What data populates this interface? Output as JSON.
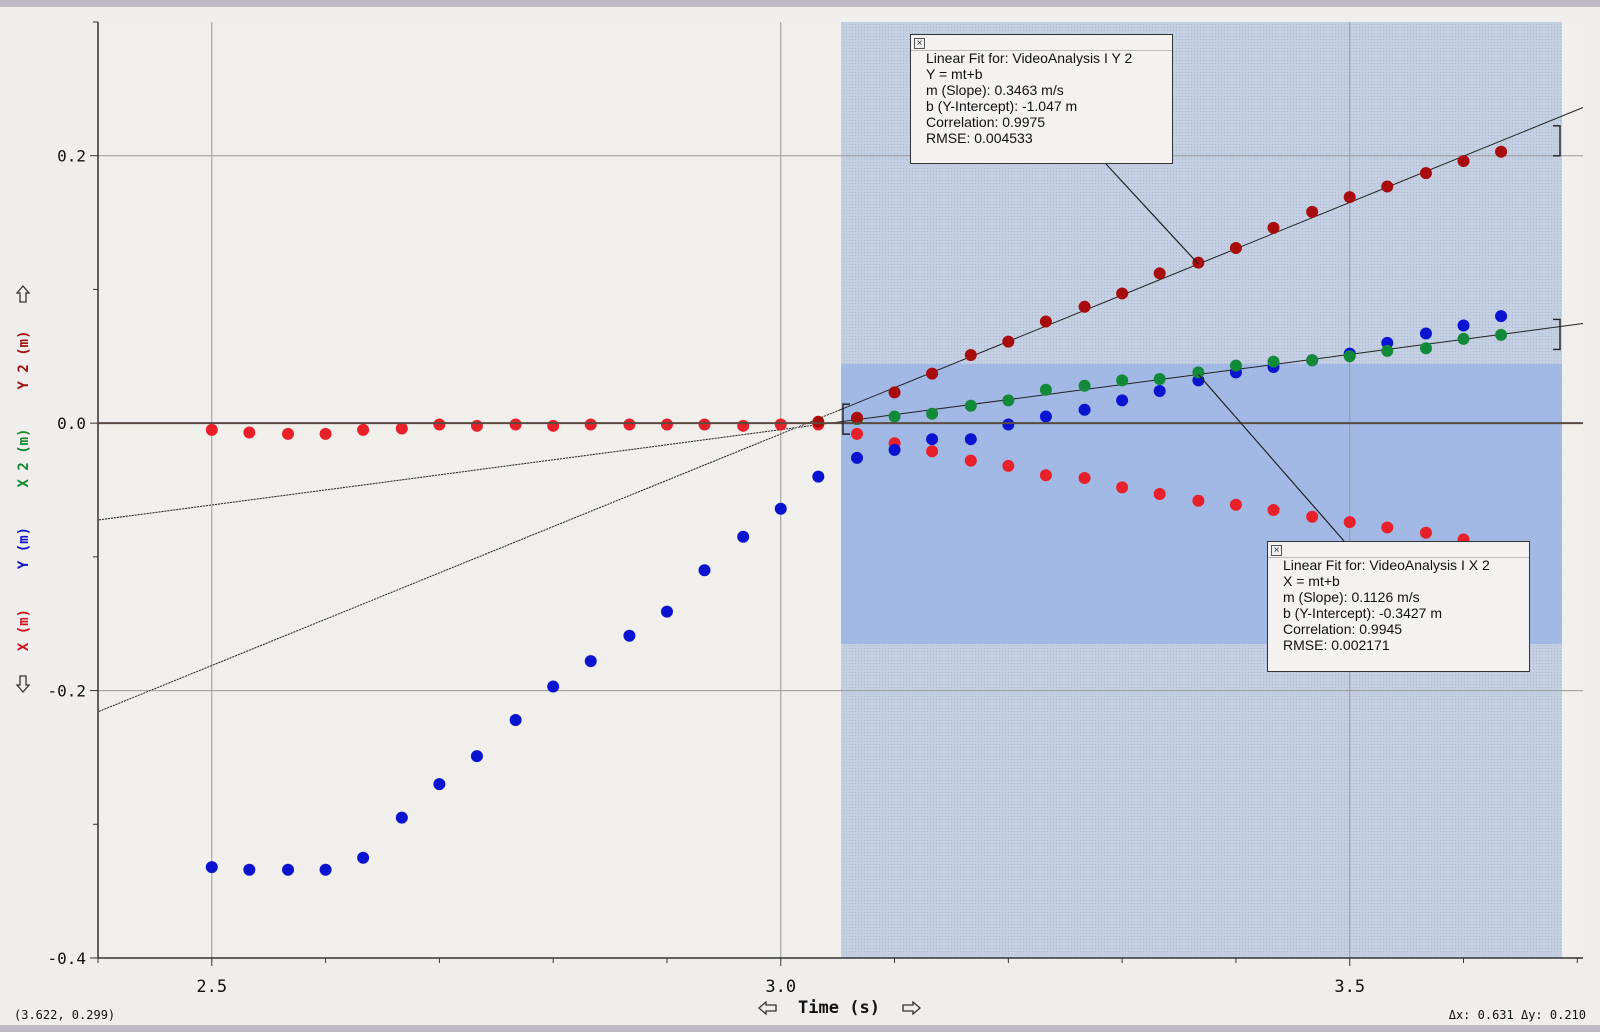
{
  "chart_data": {
    "type": "scatter",
    "xlabel": "Time (s)",
    "ylabels": [
      {
        "text": "X (m)",
        "color": "#d01020"
      },
      {
        "text": "Y (m)",
        "color": "#1010c8"
      },
      {
        "text": "X 2 (m)",
        "color": "#108830"
      },
      {
        "text": "Y 2 (m)",
        "color": "#a01010"
      }
    ],
    "xlim": [
      2.4,
      3.705
    ],
    "ylim": [
      -0.4,
      0.3
    ],
    "x_ticks": [
      2.5,
      3.0,
      3.5
    ],
    "x_tick_labels": [
      "2.5",
      "3.0",
      "3.5"
    ],
    "y_ticks": [
      -0.4,
      -0.2,
      0.0,
      0.2
    ],
    "y_tick_labels": [
      "-0.4",
      "-0.2",
      "0.0",
      "0.2"
    ],
    "grid": true,
    "series": [
      {
        "name": "X",
        "color": "#e8202a",
        "x": [
          2.5,
          2.533,
          2.567,
          2.6,
          2.633,
          2.667,
          2.7,
          2.733,
          2.767,
          2.8,
          2.833,
          2.867,
          2.9,
          2.933,
          2.967,
          3.0,
          3.033,
          3.067,
          3.1,
          3.133,
          3.167,
          3.2,
          3.233,
          3.267,
          3.3,
          3.333,
          3.367,
          3.4,
          3.433,
          3.467,
          3.5,
          3.533,
          3.567,
          3.6
        ],
        "y": [
          -0.005,
          -0.007,
          -0.008,
          -0.008,
          -0.005,
          -0.004,
          -0.001,
          -0.002,
          -0.001,
          -0.002,
          -0.001,
          -0.001,
          -0.001,
          -0.001,
          -0.002,
          -0.001,
          -0.001,
          -0.008,
          -0.015,
          -0.021,
          -0.028,
          -0.032,
          -0.039,
          -0.041,
          -0.048,
          -0.053,
          -0.058,
          -0.061,
          -0.065,
          -0.07,
          -0.074,
          -0.078,
          -0.082,
          -0.087
        ]
      },
      {
        "name": "Y",
        "color": "#0a14d0",
        "x": [
          2.5,
          2.533,
          2.567,
          2.6,
          2.633,
          2.667,
          2.7,
          2.733,
          2.767,
          2.8,
          2.833,
          2.867,
          2.9,
          2.933,
          2.967,
          3.0,
          3.033,
          3.067,
          3.1,
          3.133,
          3.167,
          3.2,
          3.233,
          3.267,
          3.3,
          3.333,
          3.367,
          3.4,
          3.433,
          3.467,
          3.5,
          3.533,
          3.567,
          3.6,
          3.633
        ],
        "y": [
          -0.332,
          -0.334,
          -0.334,
          -0.334,
          -0.325,
          -0.295,
          -0.27,
          -0.249,
          -0.222,
          -0.197,
          -0.178,
          -0.159,
          -0.141,
          -0.11,
          -0.085,
          -0.064,
          -0.04,
          -0.026,
          -0.02,
          -0.012,
          -0.012,
          -0.001,
          0.005,
          0.01,
          0.017,
          0.024,
          0.032,
          0.038,
          0.042,
          0.047,
          0.052,
          0.06,
          0.067,
          0.073,
          0.08
        ]
      },
      {
        "name": "X 2",
        "color": "#128a3a",
        "x": [
          3.067,
          3.1,
          3.133,
          3.167,
          3.2,
          3.233,
          3.267,
          3.3,
          3.333,
          3.367,
          3.4,
          3.433,
          3.467,
          3.5,
          3.533,
          3.567,
          3.6,
          3.633
        ],
        "y": [
          0.003,
          0.005,
          0.007,
          0.013,
          0.017,
          0.025,
          0.028,
          0.032,
          0.033,
          0.038,
          0.043,
          0.046,
          0.047,
          0.05,
          0.054,
          0.056,
          0.063,
          0.066
        ]
      },
      {
        "name": "Y 2",
        "color": "#a80c0c",
        "x": [
          3.033,
          3.067,
          3.1,
          3.133,
          3.167,
          3.2,
          3.233,
          3.267,
          3.3,
          3.333,
          3.367,
          3.4,
          3.433,
          3.467,
          3.5,
          3.533,
          3.567,
          3.6,
          3.633
        ],
        "y": [
          0.001,
          0.004,
          0.023,
          0.037,
          0.051,
          0.061,
          0.076,
          0.087,
          0.097,
          0.112,
          0.12,
          0.131,
          0.146,
          0.158,
          0.169,
          0.177,
          0.187,
          0.196,
          0.203
        ]
      }
    ],
    "fits": [
      {
        "name": "Linear Fit for: VideoAnalysis I Y 2",
        "slope": 0.3463,
        "intercept": -1.047
      },
      {
        "name": "Linear Fit for: VideoAnalysis I X 2",
        "slope": 0.1126,
        "intercept": -0.3427
      }
    ]
  },
  "fit_boxes": [
    {
      "lines": [
        "Linear Fit for:  VideoAnalysis I Y 2",
        "Y = mt+b",
        "m (Slope): 0.3463 m/s",
        "b (Y-Intercept): -1.047 m",
        "Correlation: 0.9975",
        "RMSE: 0.004533"
      ]
    },
    {
      "lines": [
        "Linear Fit for:  VideoAnalysis I X 2",
        "X = mt+b",
        "m (Slope): 0.1126 m/s",
        "b (Y-Intercept): -0.3427 m",
        "Correlation: 0.9945",
        "RMSE: 0.002171"
      ]
    }
  ],
  "status": {
    "cursor_readout": "(3.622, 0.299)",
    "delta_readout": "Δx: 0.631 Δy: 0.210"
  },
  "colors": {
    "selection": "#c0cde2",
    "examine_band": "#9db6e4",
    "plot_bg": "#f1efec"
  }
}
